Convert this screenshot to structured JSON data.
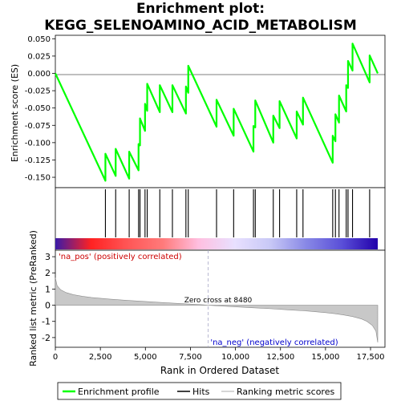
{
  "title": "Enrichment plot:\nKEGG_SELENOAMINO_ACID_METABOLISM",
  "title_lines": [
    "Enrichment plot:",
    "KEGG_SELENOAMINO_ACID_METABOLISM"
  ],
  "chart_data": {
    "type": "line",
    "x_ticks": [
      "0",
      "2,500",
      "5,000",
      "7,500",
      "10,000",
      "12,500",
      "15,000",
      "17,500"
    ],
    "x_tick_values": [
      0,
      2500,
      5000,
      7500,
      10000,
      12500,
      15000,
      17500
    ],
    "xlabel": "Rank in Ordered Dataset",
    "xlim": [
      0,
      18000
    ],
    "top_panel": {
      "ylabel": "Enrichment score (ES)",
      "ylim": [
        -0.165,
        0.055
      ],
      "y_ticks": [
        "0.050",
        "0.025",
        "0.000",
        "-0.025",
        "-0.050",
        "-0.075",
        "-0.100",
        "-0.125",
        "-0.150"
      ],
      "y_tick_values": [
        0.05,
        0.025,
        0.0,
        -0.025,
        -0.05,
        -0.075,
        -0.1,
        -0.125,
        -0.15
      ],
      "series": [
        {
          "name": "Enrichment profile",
          "color": "#00ff00",
          "x": [
            0,
            2780,
            2780,
            3350,
            3350,
            4100,
            4100,
            4620,
            4620,
            4700,
            4700,
            4980,
            4980,
            5100,
            5100,
            5800,
            5800,
            6500,
            6500,
            7250,
            7250,
            7380,
            7380,
            8950,
            8950,
            9900,
            9900,
            11000,
            11000,
            11100,
            11100,
            12100,
            12100,
            12450,
            12450,
            13400,
            13400,
            13750,
            13750,
            15400,
            15400,
            15550,
            15550,
            15750,
            15750,
            16150,
            16150,
            16250,
            16250,
            16500,
            16500,
            17450,
            17450,
            17900
          ],
          "y": [
            0.0,
            -0.155,
            -0.116,
            -0.148,
            -0.109,
            -0.152,
            -0.113,
            -0.14,
            -0.102,
            -0.104,
            -0.065,
            -0.083,
            -0.044,
            -0.054,
            -0.015,
            -0.056,
            -0.017,
            -0.056,
            -0.017,
            -0.058,
            -0.019,
            -0.028,
            0.011,
            -0.077,
            -0.038,
            -0.09,
            -0.051,
            -0.113,
            -0.076,
            -0.078,
            -0.039,
            -0.1,
            -0.061,
            -0.079,
            -0.04,
            -0.094,
            -0.055,
            -0.074,
            -0.035,
            -0.129,
            -0.09,
            -0.098,
            -0.059,
            -0.071,
            -0.032,
            -0.055,
            -0.017,
            -0.021,
            0.018,
            0.004,
            0.043,
            -0.013,
            0.026,
            0.0
          ]
        }
      ]
    },
    "hits": [
      2780,
      3350,
      4100,
      4620,
      4700,
      4980,
      5100,
      5800,
      6500,
      7250,
      7380,
      8950,
      9900,
      11000,
      11100,
      12100,
      12450,
      13400,
      13750,
      15400,
      15550,
      15750,
      16150,
      16250,
      16500,
      17450
    ],
    "bottom_panel": {
      "ylabel": "Ranked list metric (PreRanked)",
      "ylim": [
        -2.6,
        3.4
      ],
      "y_ticks": [
        "3",
        "2",
        "1",
        "0",
        "-1",
        "-2"
      ],
      "y_tick_values": [
        3,
        2,
        1,
        0,
        -1,
        -2
      ],
      "zero_cross_label": "Zero cross at 8480",
      "zero_cross": 8480,
      "pos_label": "'na_pos' (positively correlated)",
      "neg_label": "'na_neg' (negatively correlated)",
      "metric_profile": {
        "x": [
          0,
          100,
          300,
          600,
          1000,
          1500,
          2000,
          3000,
          4000,
          5000,
          6000,
          7000,
          8000,
          8480,
          9000,
          10000,
          11000,
          12000,
          13000,
          14000,
          15000,
          15500,
          16000,
          16500,
          17000,
          17300,
          17600,
          17800,
          17900
        ],
        "y": [
          1.7,
          1.2,
          0.95,
          0.78,
          0.65,
          0.55,
          0.48,
          0.38,
          0.3,
          0.23,
          0.16,
          0.1,
          0.04,
          0.0,
          -0.04,
          -0.1,
          -0.16,
          -0.22,
          -0.29,
          -0.36,
          -0.46,
          -0.52,
          -0.6,
          -0.7,
          -0.85,
          -1.0,
          -1.25,
          -1.6,
          -2.3
        ]
      }
    },
    "legend": {
      "placement": "bottom",
      "entries": [
        "Enrichment profile",
        "Hits",
        "Ranking metric scores"
      ]
    },
    "colors": {
      "enrichment": "#00ff00",
      "hits": "#000000",
      "metric_fill": "#c8c8c8",
      "metric_stroke": "#8a8a8a",
      "zero_line": "#a8a8c8",
      "pos_text": "#cc0000",
      "neg_text": "#0000cc"
    },
    "heat_band": [
      "#3a1aa8",
      "#ff2222",
      "#ff5555",
      "#ff7a7a",
      "#ffbfe0",
      "#e8e0ff",
      "#c8c8f6",
      "#8888e6",
      "#5a4fd8",
      "#2200aa"
    ],
    "grid": false
  }
}
